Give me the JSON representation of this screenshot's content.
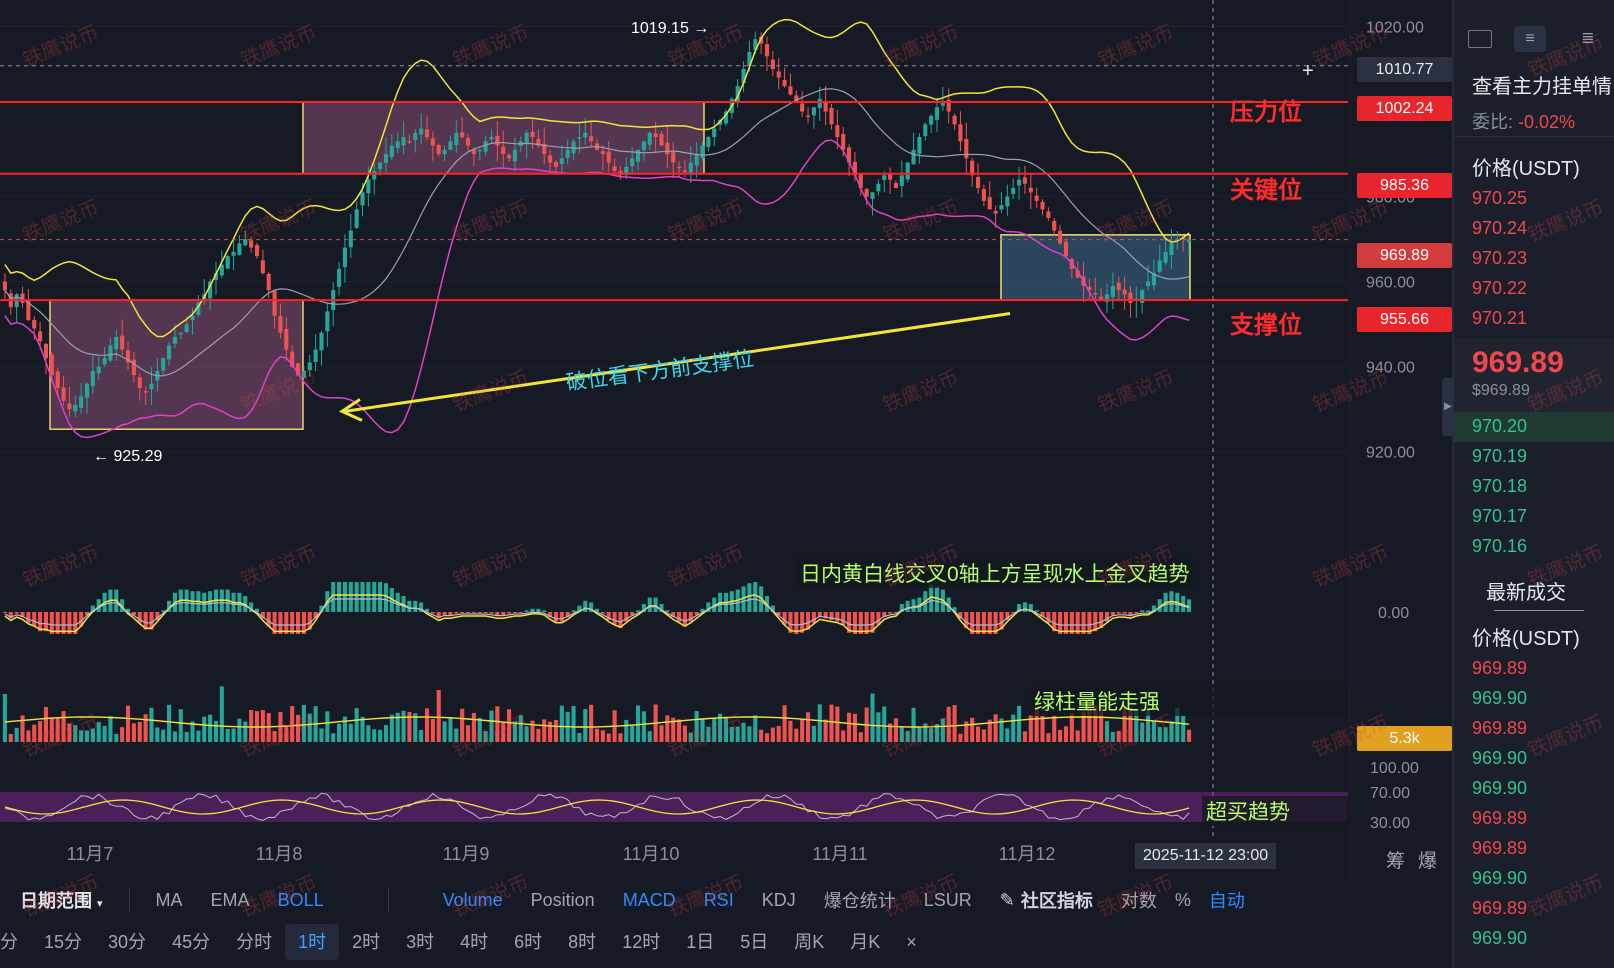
{
  "chart_data": {
    "type": "candlestick",
    "symbol_pair_unit": "USDT",
    "ylim": [
      911,
      1022
    ],
    "y_ticks": [
      1020,
      980,
      960,
      940,
      920
    ],
    "y_tick_labels": [
      "1020.00",
      "980.00",
      "960.00",
      "940.00",
      "920.00"
    ],
    "x_tick_labels": [
      "11月7",
      "11月8",
      "11月9",
      "11月10",
      "11月11",
      "11月12"
    ],
    "high_marker": "1019.15",
    "low_marker": "925.29",
    "crosshair_price": "1010.77",
    "crosshair_time": "2025-11-12 23:00",
    "last_price": "969.89",
    "levels": [
      {
        "label": "压力位",
        "value": 1002.24,
        "tag": "1002.24"
      },
      {
        "label": "关键位",
        "value": 985.36,
        "tag": "985.36"
      },
      {
        "label": "支撑位",
        "value": 955.66,
        "tag": "955.66"
      }
    ],
    "arrow_annotation": "破位看下方前支撑位",
    "boxes": [
      {
        "name": "consolidation-low",
        "x_from": "11月6 13:00",
        "x_to": "11月8 02:00",
        "y_from": 925.29,
        "y_to": 955.66
      },
      {
        "name": "consolidation-high",
        "x_from": "11月8 02:00",
        "x_to": "11月10 05:00",
        "y_from": 985.36,
        "y_to": 1002.24
      },
      {
        "name": "current-range",
        "x_from": "11月11 22:00",
        "x_to": "11月12 23:00",
        "y_from": 955.66,
        "y_to": 971
      }
    ],
    "candles_close": [
      958,
      954,
      957,
      955,
      951,
      949,
      946,
      942,
      938,
      935,
      932,
      930,
      931,
      933,
      936,
      939,
      940,
      942,
      945,
      947,
      944,
      941,
      938,
      935,
      934,
      936,
      939,
      942,
      945,
      947,
      948,
      950,
      952,
      955,
      957,
      960,
      962,
      964,
      966,
      967,
      969,
      970,
      968,
      966,
      962,
      958,
      952,
      948,
      944,
      940,
      938,
      939,
      941,
      944,
      948,
      953,
      958,
      963,
      968,
      972,
      977,
      981,
      984,
      986,
      988,
      990,
      992,
      993,
      994,
      993,
      995,
      996,
      994,
      992,
      990,
      991,
      993,
      995,
      994,
      992,
      990,
      991,
      993,
      994,
      992,
      990,
      989,
      991,
      993,
      995,
      994,
      992,
      990,
      988,
      987,
      989,
      991,
      993,
      994,
      995,
      993,
      991,
      990,
      988,
      986,
      985,
      987,
      989,
      991,
      993,
      995,
      994,
      992,
      990,
      988,
      987,
      986,
      988,
      990,
      992,
      994,
      996,
      998,
      1000,
      1003,
      1006,
      1010,
      1014,
      1017,
      1016,
      1013,
      1010,
      1008,
      1006,
      1004,
      1002,
      1000,
      999,
      1001,
      1003,
      1000,
      997,
      994,
      991,
      988,
      985,
      982,
      980,
      981,
      983,
      985,
      984,
      982,
      985,
      988,
      991,
      994,
      997,
      999,
      1001,
      1002,
      1000,
      997,
      993,
      989,
      985,
      982,
      979,
      977,
      976,
      978,
      980,
      982,
      984,
      983,
      981,
      979,
      977,
      975,
      972,
      969,
      966,
      963,
      961,
      959,
      958,
      957,
      956,
      957,
      959,
      958,
      957,
      955,
      956,
      958,
      960,
      962,
      965,
      967,
      969,
      970,
      970,
      969.89
    ],
    "volume_tag": "5.3k",
    "macd_zero_label": "0.00",
    "rsi_ticks": [
      "100.00",
      "70.00",
      "30.00"
    ],
    "series": [
      {
        "name": "BOLL upper"
      },
      {
        "name": "BOLL mid"
      },
      {
        "name": "BOLL lower"
      }
    ]
  },
  "annotations": {
    "macd_note": "日内黄白线交叉0轴上方呈现水上金叉趋势",
    "volume_note": "绿柱量能走强",
    "rsi_note": "超买趋势"
  },
  "watermark": "铁鹰说币",
  "colors": {
    "up": "#26a69a",
    "down": "#ef5350",
    "level_line": "#ff2020",
    "boll_upper": "#f3e43a",
    "boll_lower": "#e040c8",
    "boll_mid": "#9aa0b0",
    "bg": "#161a25"
  },
  "toolbar_indicators": {
    "date_range": "日期范围",
    "items": [
      "MA",
      "EMA",
      "BOLL",
      "Volume",
      "Position",
      "MACD",
      "RSI",
      "KDJ",
      "爆仓统计",
      "LSUR"
    ],
    "active": [
      "BOLL",
      "Volume",
      "MACD",
      "RSI"
    ],
    "community": "社区指标",
    "log": "对数",
    "percent": "%",
    "auto": "自动"
  },
  "toolbar_timeframes": {
    "items": [
      "分",
      "15分",
      "30分",
      "45分",
      "分时",
      "1时",
      "2时",
      "3时",
      "4时",
      "6时",
      "8时",
      "12时",
      "1日",
      "5日",
      "周K",
      "月K"
    ],
    "active": "1时",
    "close": "×"
  },
  "right_side_labels": {
    "chips": "筹",
    "liquidation": "爆"
  },
  "orderbook": {
    "title": "查看主力挂单情",
    "ratio_label": "委比:",
    "ratio_value": "-0.02%",
    "price_header": "价格(USDT)",
    "asks": [
      "970.25",
      "970.24",
      "970.23",
      "970.22",
      "970.21"
    ],
    "last_price": "969.89",
    "last_price_sub": "$969.89",
    "bids": [
      "970.20",
      "970.19",
      "970.18",
      "970.17",
      "970.16"
    ],
    "trades_title": "最新成交",
    "trades_header": "价格(USDT)",
    "trades": [
      {
        "price": "969.89",
        "side": "sell"
      },
      {
        "price": "969.90",
        "side": "buy"
      },
      {
        "price": "969.89",
        "side": "sell"
      },
      {
        "price": "969.90",
        "side": "buy"
      },
      {
        "price": "969.90",
        "side": "buy"
      },
      {
        "price": "969.89",
        "side": "sell"
      },
      {
        "price": "969.89",
        "side": "sell"
      },
      {
        "price": "969.90",
        "side": "buy"
      },
      {
        "price": "969.89",
        "side": "sell"
      },
      {
        "price": "969.90",
        "side": "buy"
      }
    ]
  }
}
